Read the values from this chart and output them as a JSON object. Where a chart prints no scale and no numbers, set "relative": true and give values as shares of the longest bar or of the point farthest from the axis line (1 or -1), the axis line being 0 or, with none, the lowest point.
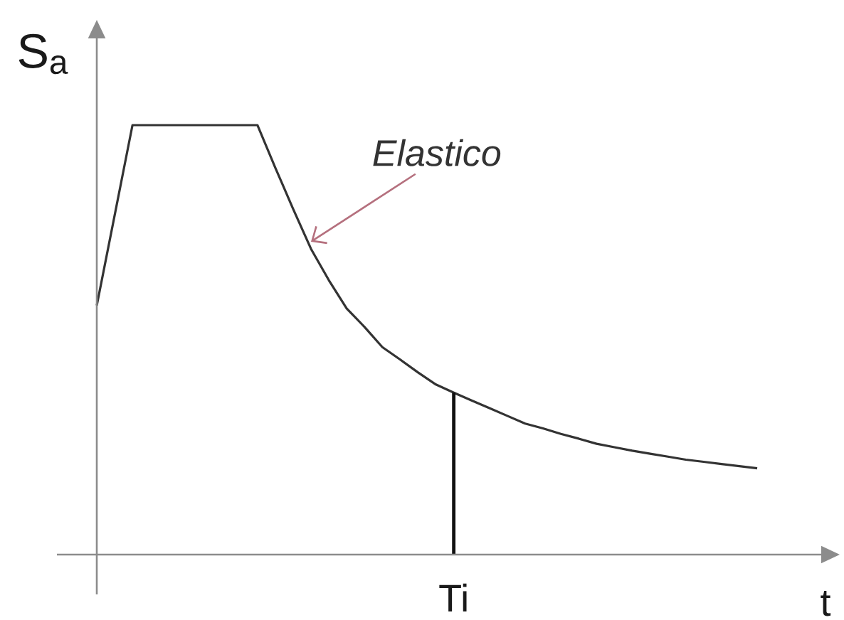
{
  "chart_data": {
    "type": "line",
    "xlabel": "t",
    "ylabel": "S$_{a}$",
    "relative": true,
    "categories": [
      null,
      null,
      null,
      null,
      null,
      null,
      null,
      null,
      null,
      null,
      null,
      null,
      null,
      null,
      null,
      null,
      null,
      null,
      null,
      null,
      null,
      null,
      null,
      null,
      null,
      null,
      null,
      null,
      null,
      null,
      null,
      null,
      null,
      null,
      null,
      null,
      null,
      null
    ],
    "series": [
      {
        "name": "Elastico",
        "color": "#333333",
        "values": [
          0.58,
          0.79,
          1.0,
          1.0,
          1.0,
          1.0,
          1.0,
          1.0,
          1.0,
          1.0,
          0.901,
          0.805,
          0.712,
          0.639,
          0.573,
          0.53,
          0.483,
          0.454,
          0.424,
          0.396,
          0.377,
          0.359,
          0.341,
          0.323,
          0.305,
          0.294,
          0.281,
          0.27,
          0.258,
          0.25,
          0.242,
          0.235,
          0.228,
          0.221,
          0.216,
          0.211,
          0.206,
          0.201
        ]
      }
    ],
    "annotations": [
      "Ti"
    ],
    "legend": false,
    "marker": "none",
    "line_style": "solid"
  }
}
